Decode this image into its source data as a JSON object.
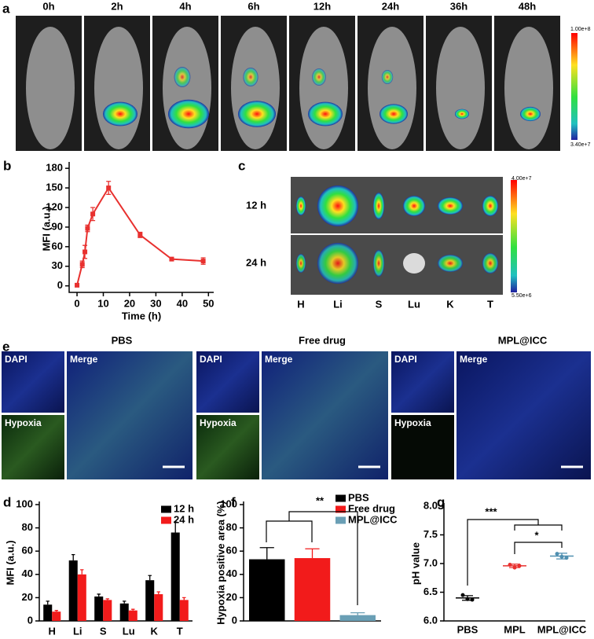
{
  "panel_a": {
    "panel": "a",
    "times": [
      "0h",
      "2h",
      "4h",
      "6h",
      "12h",
      "24h",
      "36h",
      "48h"
    ],
    "colorbar": [
      "1.00e+8",
      "3.40e+7"
    ]
  },
  "panel_c": {
    "panel": "c",
    "rows": [
      "12 h",
      "24 h"
    ],
    "organs": [
      "H",
      "Li",
      "S",
      "Lu",
      "K",
      "T"
    ],
    "colorbar": [
      "4.00e+7",
      "5.50e+6"
    ]
  },
  "panel_e": {
    "panel": "e",
    "groups": [
      "PBS",
      "Free drug",
      "MPL@ICC"
    ],
    "stains": [
      "DAPI",
      "Merge",
      "Hypoxia"
    ]
  },
  "chart_data": [
    {
      "type": "line",
      "panel": "b",
      "xlabel": "Time (h)",
      "ylabel": "MFI (a.u.)",
      "x": [
        0,
        2,
        3,
        4,
        6,
        12,
        24,
        36,
        48
      ],
      "values": [
        1,
        33,
        52,
        88,
        110,
        150,
        78,
        41,
        38
      ],
      "errors": [
        0,
        5,
        10,
        5,
        10,
        10,
        4,
        2,
        5
      ],
      "color": "#e8312f",
      "xlim": [
        -3,
        52
      ],
      "xticks": [
        0,
        10,
        20,
        30,
        40,
        50
      ],
      "ylim": [
        -10,
        185
      ],
      "yticks": [
        0,
        30,
        60,
        90,
        120,
        150,
        180
      ]
    },
    {
      "type": "bar",
      "panel": "d",
      "ylabel": "MFI (a.u.)",
      "categories": [
        "H",
        "Li",
        "S",
        "Lu",
        "K",
        "T"
      ],
      "series": [
        {
          "name": "12 h",
          "color": "#000000",
          "values": [
            14,
            52,
            21,
            15,
            35,
            76
          ],
          "errors": [
            3,
            5,
            2,
            2,
            4,
            9
          ]
        },
        {
          "name": "24 h",
          "color": "#f21b1b",
          "values": [
            8,
            40,
            18,
            9,
            23,
            18
          ],
          "errors": [
            1,
            4,
            1,
            1,
            2,
            2
          ]
        }
      ],
      "ylim": [
        0,
        100
      ],
      "yticks": [
        0,
        20,
        40,
        60,
        80,
        100
      ],
      "legend": true
    },
    {
      "type": "bar",
      "panel": "f",
      "ylabel": "Hypoxia positive area (%)",
      "categories": [
        null
      ],
      "series": [
        {
          "name": "PBS",
          "color": "#000000",
          "values": [
            53
          ],
          "errors": [
            10
          ]
        },
        {
          "name": "Free drug",
          "color": "#f21b1b",
          "values": [
            54
          ],
          "errors": [
            8
          ]
        },
        {
          "name": "MPL@ICC",
          "color": "#6a9fb5",
          "values": [
            5
          ],
          "errors": [
            2
          ]
        }
      ],
      "ylim": [
        0,
        100
      ],
      "yticks": [
        0,
        20,
        40,
        60,
        80,
        100
      ],
      "legend": true,
      "annotations": [
        "**"
      ]
    },
    {
      "type": "scatter",
      "panel": "g",
      "ylabel": "pH value",
      "categories": [
        "PBS",
        "MPL",
        "MPL@ICC"
      ],
      "values": [
        6.4,
        6.96,
        7.13
      ],
      "errors": [
        0.04,
        0.03,
        0.05
      ],
      "points": [
        [
          6.45,
          6.38,
          6.37
        ],
        [
          6.98,
          6.93,
          6.96
        ],
        [
          7.17,
          7.12,
          7.1
        ]
      ],
      "colors": [
        "#000000",
        "#e8312f",
        "#4f8fb0"
      ],
      "ylim": [
        6.0,
        8.0
      ],
      "yticks": [
        {
          "value": 6.0,
          "label": "6.0"
        },
        {
          "value": 6.5,
          "label": "6.5"
        },
        {
          "value": 7.0,
          "label": "7.0"
        },
        {
          "value": 7.5,
          "label": "7.5"
        },
        {
          "value": 8.0,
          "label": "8.0"
        }
      ],
      "annotations": [
        "***",
        "*"
      ]
    }
  ]
}
